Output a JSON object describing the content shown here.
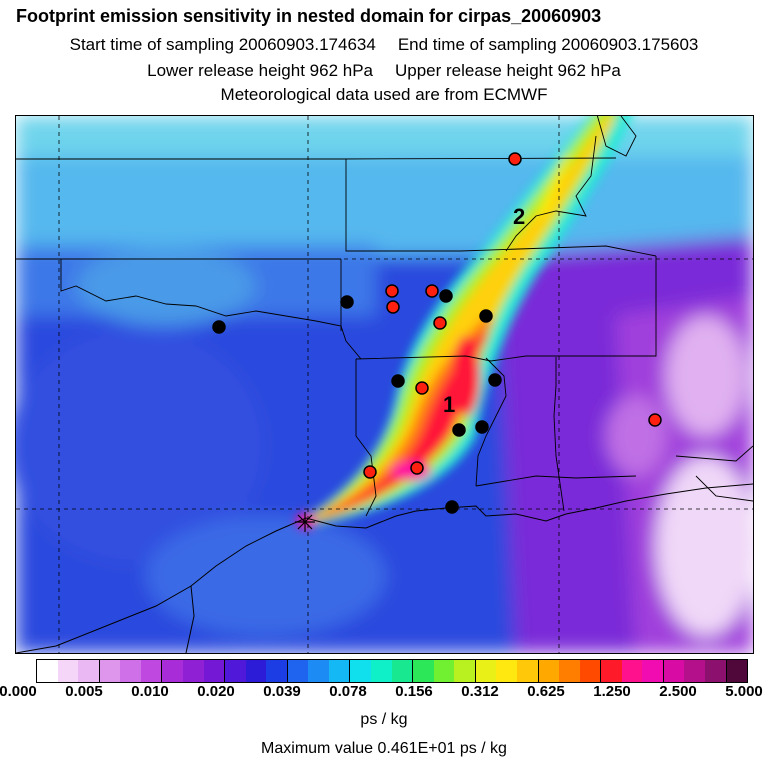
{
  "title": "Footprint emission sensitivity in nested domain for cirpas_20060903",
  "start_sampling": "Start time of sampling 20060903.174634",
  "end_sampling": "End time of sampling 20060903.175603",
  "lower_release": "Lower release height  962 hPa",
  "upper_release": "Upper release height  962 hPa",
  "met_data": "Meteorological data used are from ECMWF",
  "map": {
    "labels": [
      "1",
      "2"
    ],
    "release_marker": "release-site-star-icon"
  },
  "colorbar": {
    "colors": [
      "#ffffff",
      "#f6d6f8",
      "#eab8f2",
      "#de96ec",
      "#d070e8",
      "#bf48e0",
      "#a82cd8",
      "#9020d4",
      "#7418d6",
      "#5018d8",
      "#2c1cd8",
      "#1c3ce4",
      "#1e64ee",
      "#1c8cf4",
      "#14b8f4",
      "#10e0ee",
      "#10f0c8",
      "#18e890",
      "#2ce858",
      "#70f030",
      "#b8f020",
      "#e8f018",
      "#ffe810",
      "#ffc808",
      "#ffa800",
      "#ff7e00",
      "#ff4a00",
      "#ff1a2a",
      "#ff108c",
      "#f00cb0",
      "#d80ca4",
      "#b4108c",
      "#8c106e",
      "#50083a"
    ],
    "ticks": [
      "0.000",
      "0.005",
      "0.010",
      "0.020",
      "0.039",
      "0.078",
      "0.156",
      "0.312",
      "0.625",
      "1.250",
      "2.500",
      "5.000"
    ],
    "unit": "ps / kg",
    "max_value": "Maximum value  0.461E+01 ps / kg"
  }
}
